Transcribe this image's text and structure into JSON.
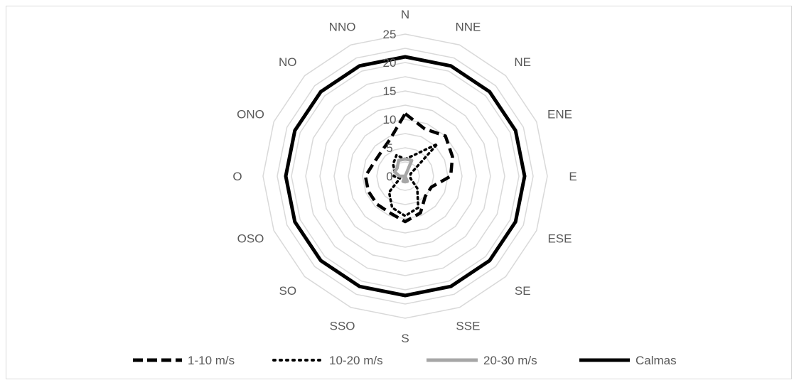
{
  "chart_data": {
    "type": "radar",
    "title": "",
    "directions": [
      "N",
      "NNE",
      "NE",
      "ENE",
      "E",
      "ESE",
      "SE",
      "SSE",
      "S",
      "SSO",
      "SO",
      "OSO",
      "O",
      "ONO",
      "NO",
      "NNO"
    ],
    "r_ticks": [
      "0",
      "5",
      "10",
      "15",
      "20",
      "25"
    ],
    "rlim": [
      0,
      25
    ],
    "grid": true,
    "legend_position": "bottom",
    "series": [
      {
        "name": "1-10 m/s",
        "style": "dashed",
        "color": "#000000",
        "values": [
          11,
          9,
          10,
          9,
          8,
          5,
          5,
          7,
          8,
          7,
          7,
          7,
          7,
          6,
          6,
          7
        ]
      },
      {
        "name": "10-20 m/s",
        "style": "dotted",
        "color": "#000000",
        "values": [
          3,
          4,
          8,
          1,
          1,
          1,
          3,
          6,
          7,
          6,
          4,
          1,
          2,
          2,
          3,
          4
        ]
      },
      {
        "name": "20-30 m/s",
        "style": "solid",
        "color": "#a6a6a6",
        "values": [
          3,
          3,
          0,
          0,
          0,
          0,
          0,
          1,
          1,
          1,
          0,
          0,
          1,
          2,
          2,
          3
        ]
      },
      {
        "name": "Calmas",
        "style": "solid",
        "color": "#000000",
        "values": [
          21,
          21,
          21,
          21,
          21,
          21,
          21,
          21,
          21,
          21,
          21,
          21,
          21,
          21,
          21,
          21
        ]
      }
    ]
  }
}
